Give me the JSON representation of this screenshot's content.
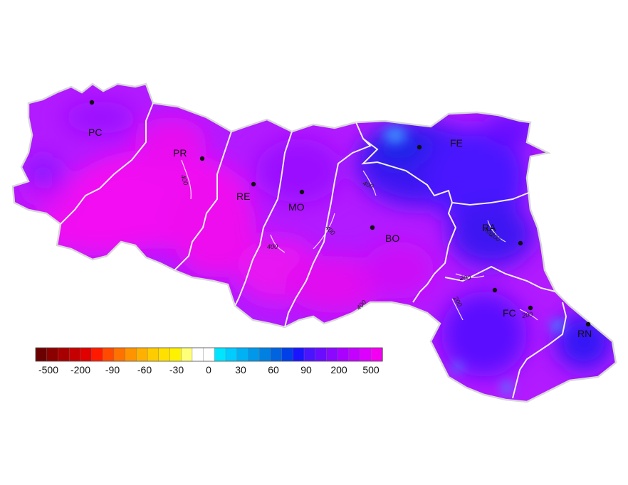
{
  "provinces": [
    {
      "code": "PC"
    },
    {
      "code": "PR"
    },
    {
      "code": "RE"
    },
    {
      "code": "MO"
    },
    {
      "code": "BO"
    },
    {
      "code": "FE"
    },
    {
      "code": "RA"
    },
    {
      "code": "FC"
    },
    {
      "code": "RN"
    }
  ],
  "contour_labels": [
    "400",
    "400",
    "400",
    "400",
    "400",
    "400",
    "200",
    "200",
    "200",
    "200"
  ],
  "legend": {
    "tick_labels": [
      "-500",
      "-200",
      "-90",
      "-60",
      "-30",
      "0",
      "30",
      "60",
      "90",
      "200",
      "500"
    ],
    "colors": [
      "#6b0000",
      "#8b0000",
      "#a80000",
      "#c40000",
      "#e00000",
      "#ff1a00",
      "#ff4a00",
      "#ff7200",
      "#ff9400",
      "#ffb000",
      "#ffcc00",
      "#ffe000",
      "#fff200",
      "#ffff7a",
      "#ffffff",
      "#ffffff",
      "#00e5ff",
      "#00ccff",
      "#00b2f5",
      "#0098ea",
      "#0080e0",
      "#0064e0",
      "#0040e8",
      "#1a14ff",
      "#4a14ff",
      "#6a0cff",
      "#8a08ff",
      "#aa00ff",
      "#c400ff",
      "#dd00ff",
      "#f300f3"
    ]
  },
  "colors": {
    "region_base": "#b21aff",
    "magenta": "#f20af2",
    "violet": "#9a0cff",
    "blue": "#3c12f2",
    "deep_blue": "#1c20e8",
    "light_blue": "#3c8cff",
    "boundary": "#e8e8e8"
  }
}
